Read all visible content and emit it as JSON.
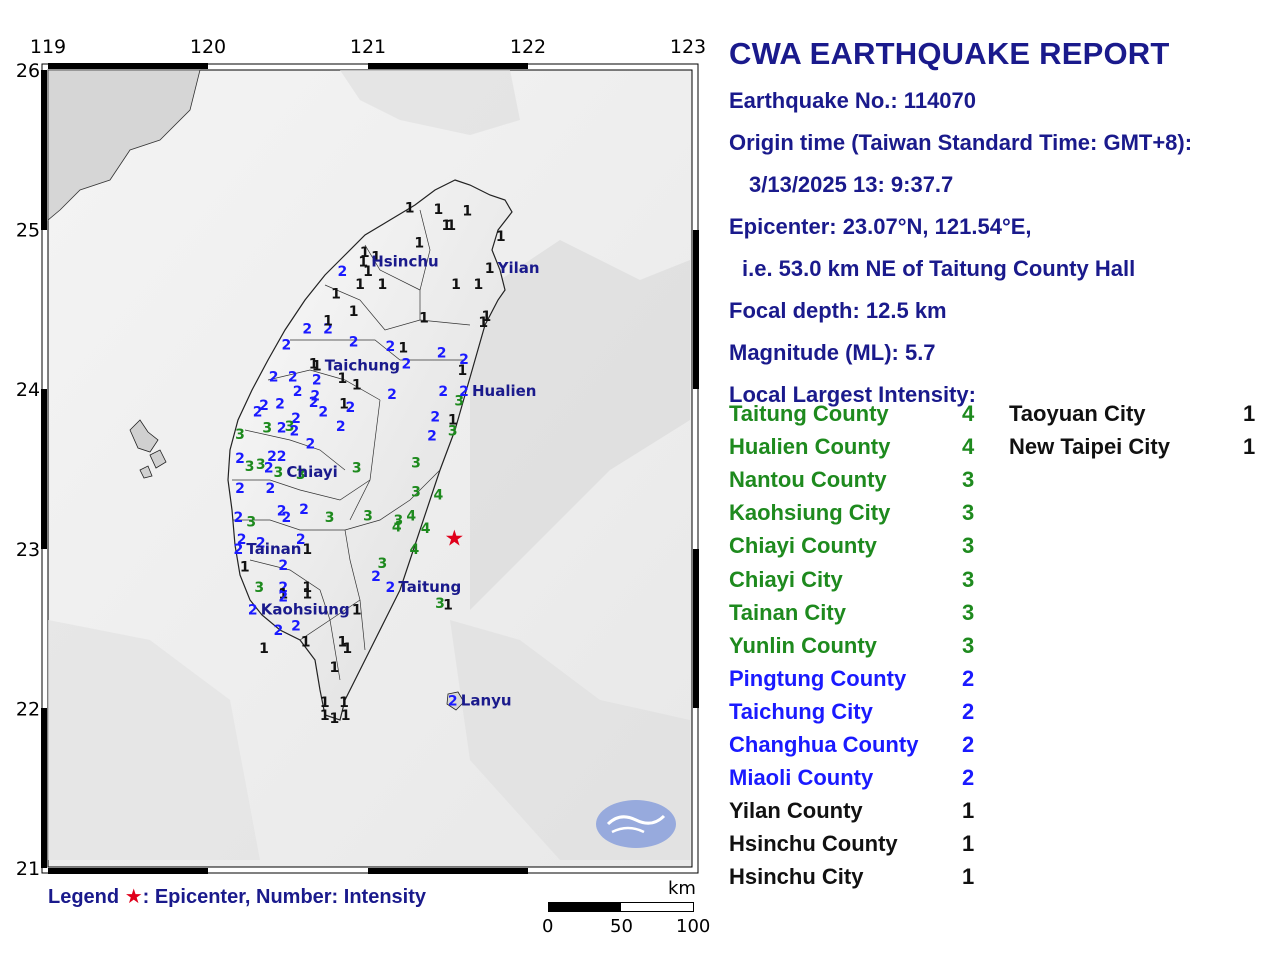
{
  "report": {
    "title": "CWA EARTHQUAKE REPORT",
    "earthquake_no": "Earthquake No.: 114070",
    "origin_label": "Origin time (Taiwan Standard Time: GMT+8):",
    "origin_time": "3/13/2025 13: 9:37.7",
    "epicenter": "Epicenter: 23.07°N, 121.54°E,",
    "epicenter_relative": "i.e. 53.0 km NE of Taitung County Hall",
    "focal_depth": "Focal depth: 12.5 km",
    "magnitude": "Magnitude (ML): 5.7",
    "local_label": "Local Largest Intensity:"
  },
  "intensity_colors": {
    "4": "#1e8a1e",
    "3": "#1e8a1e",
    "2": "#1a1aff",
    "1": "#111111"
  },
  "intensity_list": [
    {
      "name": "Taitung County",
      "value": "4"
    },
    {
      "name": "Hualien County",
      "value": "4"
    },
    {
      "name": "Nantou County",
      "value": "3"
    },
    {
      "name": "Kaohsiung City",
      "value": "3"
    },
    {
      "name": "Chiayi County",
      "value": "3"
    },
    {
      "name": "Chiayi City",
      "value": "3"
    },
    {
      "name": "Tainan City",
      "value": "3"
    },
    {
      "name": "Yunlin County",
      "value": "3"
    },
    {
      "name": "Pingtung County",
      "value": "2"
    },
    {
      "name": "Taichung City",
      "value": "2"
    },
    {
      "name": "Changhua County",
      "value": "2"
    },
    {
      "name": "Miaoli County",
      "value": "2"
    },
    {
      "name": "Yilan County",
      "value": "1"
    },
    {
      "name": "Hsinchu County",
      "value": "1"
    },
    {
      "name": "Hsinchu City",
      "value": "1"
    },
    {
      "name": "Taoyuan City",
      "value": "1"
    },
    {
      "name": "New Taipei City",
      "value": "1"
    }
  ],
  "legend": {
    "prefix": "Legend",
    "star": "★",
    "text": ": Epicenter, Number: Intensity"
  },
  "scale": {
    "unit": "km",
    "ticks": [
      "0",
      "50",
      "100"
    ]
  },
  "map": {
    "lon_ticks": [
      "119",
      "120",
      "121",
      "122",
      "123"
    ],
    "lat_ticks": [
      "26",
      "25",
      "24",
      "23",
      "22",
      "21"
    ],
    "epicenter": {
      "lon": 121.54,
      "lat": 23.07
    },
    "cities": [
      {
        "name": "Hsinchu",
        "value": "1",
        "lon": 120.97,
        "lat": 24.8
      },
      {
        "name": "Yilan",
        "value": "1",
        "lon": 121.76,
        "lat": 24.76
      },
      {
        "name": "Taichung",
        "value": "1",
        "lon": 120.68,
        "lat": 24.15
      },
      {
        "name": "Hualien",
        "value": "2",
        "lon": 121.6,
        "lat": 23.99
      },
      {
        "name": "Chiayi",
        "value": "3",
        "lon": 120.44,
        "lat": 23.48
      },
      {
        "name": "Tainan",
        "value": "2",
        "lon": 120.19,
        "lat": 23.0
      },
      {
        "name": "Taitung",
        "value": "2",
        "lon": 121.14,
        "lat": 22.76
      },
      {
        "name": "Kaohsiung",
        "value": "2",
        "lon": 120.28,
        "lat": 22.62
      },
      {
        "name": "Lanyu",
        "value": "2",
        "lon": 121.53,
        "lat": 22.05
      }
    ],
    "stations": [
      {
        "value": "1",
        "lon": 121.26,
        "lat": 25.14
      },
      {
        "value": "1",
        "lon": 121.44,
        "lat": 25.13
      },
      {
        "value": "1",
        "lon": 121.62,
        "lat": 25.12
      },
      {
        "value": "1",
        "lon": 121.49,
        "lat": 25.03
      },
      {
        "value": "1",
        "lon": 121.52,
        "lat": 25.03
      },
      {
        "value": "1",
        "lon": 121.32,
        "lat": 24.92
      },
      {
        "value": "1",
        "lon": 121.83,
        "lat": 24.96
      },
      {
        "value": "1",
        "lon": 120.98,
        "lat": 24.86
      },
      {
        "value": "1",
        "lon": 121.05,
        "lat": 24.83
      },
      {
        "value": "1",
        "lon": 121.0,
        "lat": 24.74
      },
      {
        "value": "2",
        "lon": 120.84,
        "lat": 24.74
      },
      {
        "value": "1",
        "lon": 120.95,
        "lat": 24.66
      },
      {
        "value": "1",
        "lon": 121.09,
        "lat": 24.66
      },
      {
        "value": "1",
        "lon": 121.55,
        "lat": 24.66
      },
      {
        "value": "1",
        "lon": 121.69,
        "lat": 24.66
      },
      {
        "value": "1",
        "lon": 120.8,
        "lat": 24.6
      },
      {
        "value": "1",
        "lon": 120.91,
        "lat": 24.49
      },
      {
        "value": "1",
        "lon": 121.35,
        "lat": 24.45
      },
      {
        "value": "1",
        "lon": 121.74,
        "lat": 24.46
      },
      {
        "value": "1",
        "lon": 121.72,
        "lat": 24.42
      },
      {
        "value": "2",
        "lon": 120.62,
        "lat": 24.38
      },
      {
        "value": "2",
        "lon": 120.75,
        "lat": 24.38
      },
      {
        "value": "1",
        "lon": 120.75,
        "lat": 24.43
      },
      {
        "value": "2",
        "lon": 120.49,
        "lat": 24.28
      },
      {
        "value": "2",
        "lon": 120.91,
        "lat": 24.3
      },
      {
        "value": "2",
        "lon": 121.14,
        "lat": 24.27
      },
      {
        "value": "1",
        "lon": 121.22,
        "lat": 24.26
      },
      {
        "value": "2",
        "lon": 121.46,
        "lat": 24.23
      },
      {
        "value": "2",
        "lon": 121.6,
        "lat": 24.19
      },
      {
        "value": "1",
        "lon": 121.59,
        "lat": 24.12
      },
      {
        "value": "1",
        "lon": 120.66,
        "lat": 24.16
      },
      {
        "value": "2",
        "lon": 121.24,
        "lat": 24.16
      },
      {
        "value": "2",
        "lon": 120.41,
        "lat": 24.08
      },
      {
        "value": "2",
        "lon": 120.53,
        "lat": 24.08
      },
      {
        "value": "2",
        "lon": 120.68,
        "lat": 24.06
      },
      {
        "value": "1",
        "lon": 120.84,
        "lat": 24.07
      },
      {
        "value": "1",
        "lon": 120.93,
        "lat": 24.03
      },
      {
        "value": "2",
        "lon": 120.56,
        "lat": 23.99
      },
      {
        "value": "2",
        "lon": 120.67,
        "lat": 23.96
      },
      {
        "value": "2",
        "lon": 121.15,
        "lat": 23.97
      },
      {
        "value": "2",
        "lon": 121.47,
        "lat": 23.99
      },
      {
        "value": "2",
        "lon": 120.35,
        "lat": 23.9
      },
      {
        "value": "2",
        "lon": 120.45,
        "lat": 23.91
      },
      {
        "value": "2",
        "lon": 120.66,
        "lat": 23.92
      },
      {
        "value": "1",
        "lon": 120.85,
        "lat": 23.91
      },
      {
        "value": "2",
        "lon": 120.89,
        "lat": 23.89
      },
      {
        "value": "3",
        "lon": 121.57,
        "lat": 23.93
      },
      {
        "value": "2",
        "lon": 120.72,
        "lat": 23.86
      },
      {
        "value": "2",
        "lon": 120.31,
        "lat": 23.86
      },
      {
        "value": "2",
        "lon": 120.55,
        "lat": 23.82
      },
      {
        "value": "2",
        "lon": 121.42,
        "lat": 23.83
      },
      {
        "value": "1",
        "lon": 121.53,
        "lat": 23.81
      },
      {
        "value": "3",
        "lon": 120.2,
        "lat": 23.72
      },
      {
        "value": "3",
        "lon": 120.37,
        "lat": 23.76
      },
      {
        "value": "2",
        "lon": 120.46,
        "lat": 23.76
      },
      {
        "value": "3",
        "lon": 120.51,
        "lat": 23.77
      },
      {
        "value": "2",
        "lon": 120.54,
        "lat": 23.74
      },
      {
        "value": "2",
        "lon": 120.83,
        "lat": 23.77
      },
      {
        "value": "2",
        "lon": 121.4,
        "lat": 23.71
      },
      {
        "value": "3",
        "lon": 121.53,
        "lat": 23.74
      },
      {
        "value": "2",
        "lon": 120.64,
        "lat": 23.66
      },
      {
        "value": "2",
        "lon": 120.2,
        "lat": 23.57
      },
      {
        "value": "2",
        "lon": 120.4,
        "lat": 23.58
      },
      {
        "value": "2",
        "lon": 120.46,
        "lat": 23.58
      },
      {
        "value": "3",
        "lon": 120.26,
        "lat": 23.52
      },
      {
        "value": "3",
        "lon": 120.33,
        "lat": 23.53
      },
      {
        "value": "2",
        "lon": 120.38,
        "lat": 23.51
      },
      {
        "value": "3",
        "lon": 120.58,
        "lat": 23.47
      },
      {
        "value": "3",
        "lon": 120.93,
        "lat": 23.51
      },
      {
        "value": "3",
        "lon": 121.3,
        "lat": 23.54
      },
      {
        "value": "2",
        "lon": 120.2,
        "lat": 23.38
      },
      {
        "value": "2",
        "lon": 120.39,
        "lat": 23.38
      },
      {
        "value": "3",
        "lon": 121.3,
        "lat": 23.36
      },
      {
        "value": "4",
        "lon": 121.44,
        "lat": 23.34
      },
      {
        "value": "2",
        "lon": 120.46,
        "lat": 23.24
      },
      {
        "value": "2",
        "lon": 120.49,
        "lat": 23.2
      },
      {
        "value": "2",
        "lon": 120.6,
        "lat": 23.25
      },
      {
        "value": "2",
        "lon": 120.19,
        "lat": 23.2
      },
      {
        "value": "3",
        "lon": 120.27,
        "lat": 23.17
      },
      {
        "value": "3",
        "lon": 120.76,
        "lat": 23.2
      },
      {
        "value": "3",
        "lon": 121.0,
        "lat": 23.21
      },
      {
        "value": "4",
        "lon": 121.27,
        "lat": 23.21
      },
      {
        "value": "3",
        "lon": 121.19,
        "lat": 23.18
      },
      {
        "value": "4",
        "lon": 121.18,
        "lat": 23.14
      },
      {
        "value": "4",
        "lon": 121.36,
        "lat": 23.13
      },
      {
        "value": "2",
        "lon": 120.21,
        "lat": 23.06
      },
      {
        "value": "2",
        "lon": 120.33,
        "lat": 23.04
      },
      {
        "value": "2",
        "lon": 120.19,
        "lat": 23.0
      },
      {
        "value": "1",
        "lon": 120.62,
        "lat": 23.0
      },
      {
        "value": "2",
        "lon": 120.58,
        "lat": 23.06
      },
      {
        "value": "4",
        "lon": 121.29,
        "lat": 23.0
      },
      {
        "value": "1",
        "lon": 120.23,
        "lat": 22.89
      },
      {
        "value": "2",
        "lon": 120.47,
        "lat": 22.9
      },
      {
        "value": "3",
        "lon": 121.09,
        "lat": 22.91
      },
      {
        "value": "2",
        "lon": 121.05,
        "lat": 22.83
      },
      {
        "value": "3",
        "lon": 120.32,
        "lat": 22.76
      },
      {
        "value": "2",
        "lon": 120.47,
        "lat": 22.76
      },
      {
        "value": "1",
        "lon": 120.62,
        "lat": 22.76
      },
      {
        "value": "1",
        "lon": 120.47,
        "lat": 22.72
      },
      {
        "value": "1",
        "lon": 120.62,
        "lat": 22.72
      },
      {
        "value": "2",
        "lon": 120.47,
        "lat": 22.7
      },
      {
        "value": "3",
        "lon": 121.45,
        "lat": 22.66
      },
      {
        "value": "1",
        "lon": 121.5,
        "lat": 22.65
      },
      {
        "value": "1",
        "lon": 120.93,
        "lat": 22.62
      },
      {
        "value": "2",
        "lon": 120.55,
        "lat": 22.52
      },
      {
        "value": "2",
        "lon": 120.44,
        "lat": 22.49
      },
      {
        "value": "1",
        "lon": 120.61,
        "lat": 22.42
      },
      {
        "value": "1",
        "lon": 120.84,
        "lat": 22.42
      },
      {
        "value": "1",
        "lon": 120.87,
        "lat": 22.38
      },
      {
        "value": "1",
        "lon": 120.35,
        "lat": 22.38
      },
      {
        "value": "1",
        "lon": 120.79,
        "lat": 22.26
      },
      {
        "value": "1",
        "lon": 120.73,
        "lat": 22.04
      },
      {
        "value": "1",
        "lon": 120.85,
        "lat": 22.04
      },
      {
        "value": "1",
        "lon": 120.73,
        "lat": 21.96
      },
      {
        "value": "1",
        "lon": 120.79,
        "lat": 21.94
      },
      {
        "value": "1",
        "lon": 120.86,
        "lat": 21.96
      }
    ]
  }
}
